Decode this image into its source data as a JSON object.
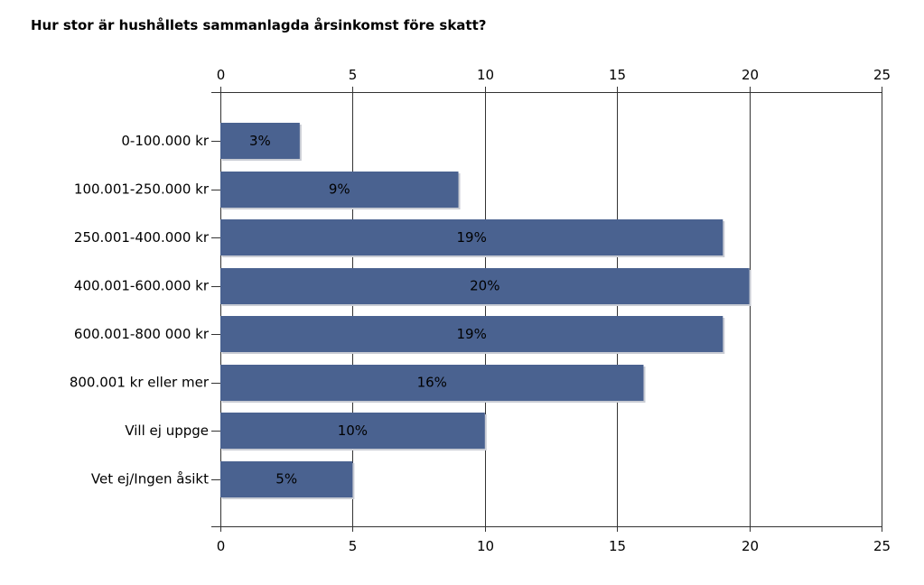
{
  "chart_data": {
    "type": "bar",
    "orientation": "horizontal",
    "title": "Hur stor är hushållets sammanlagda årsinkomst före skatt?",
    "categories": [
      "0-100.000 kr",
      "100.001-250.000 kr",
      "250.001-400.000 kr",
      "400.001-600.000 kr",
      "600.001-800 000 kr",
      "800.001 kr eller mer",
      "Vill ej uppge",
      "Vet ej/Ingen åsikt"
    ],
    "values": [
      3,
      9,
      19,
      20,
      19,
      16,
      10,
      5
    ],
    "data_labels": [
      "3%",
      "9%",
      "19%",
      "20%",
      "19%",
      "16%",
      "10%",
      "5%"
    ],
    "xlim": [
      0,
      25
    ],
    "xticks": [
      0,
      5,
      10,
      15,
      20,
      25
    ],
    "xtick_labels": [
      "0",
      "5",
      "10",
      "15",
      "20",
      "25"
    ],
    "axis_labels_position": "top and bottom",
    "grid": true,
    "bar_color": "#4a6290",
    "xlabel": "",
    "ylabel": ""
  }
}
